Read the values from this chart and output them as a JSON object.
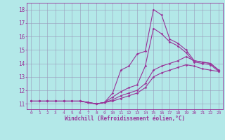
{
  "xlabel": "Windchill (Refroidissement éolien,°C)",
  "background_color": "#b3e8e8",
  "line_color": "#993399",
  "grid_color": "#9999bb",
  "xlim": [
    -0.5,
    23.5
  ],
  "ylim": [
    10.6,
    18.5
  ],
  "yticks": [
    11,
    12,
    13,
    14,
    15,
    16,
    17,
    18
  ],
  "xticks": [
    0,
    1,
    2,
    3,
    4,
    5,
    6,
    7,
    8,
    9,
    10,
    11,
    12,
    13,
    14,
    15,
    16,
    17,
    18,
    19,
    20,
    21,
    22,
    23
  ],
  "lines": [
    {
      "x": [
        0,
        1,
        2,
        3,
        4,
        5,
        6,
        7,
        8,
        9,
        10,
        11,
        12,
        13,
        14,
        15,
        16,
        17,
        18,
        19,
        20,
        21,
        22,
        23
      ],
      "y": [
        11.2,
        11.2,
        11.2,
        11.2,
        11.2,
        11.2,
        11.2,
        11.1,
        11.0,
        11.1,
        11.8,
        13.5,
        13.8,
        14.7,
        14.9,
        18.0,
        17.6,
        15.8,
        15.5,
        15.0,
        14.2,
        14.1,
        14.0,
        13.5
      ]
    },
    {
      "x": [
        0,
        1,
        2,
        3,
        4,
        5,
        6,
        7,
        8,
        9,
        10,
        11,
        12,
        13,
        14,
        15,
        16,
        17,
        18,
        19,
        20,
        21,
        22,
        23
      ],
      "y": [
        11.2,
        11.2,
        11.2,
        11.2,
        11.2,
        11.2,
        11.2,
        11.1,
        11.0,
        11.1,
        11.5,
        11.9,
        12.2,
        12.4,
        13.8,
        16.6,
        16.2,
        15.6,
        15.3,
        14.8,
        14.1,
        14.0,
        13.9,
        13.4
      ]
    },
    {
      "x": [
        0,
        1,
        2,
        3,
        4,
        5,
        6,
        7,
        8,
        9,
        10,
        11,
        12,
        13,
        14,
        15,
        16,
        17,
        18,
        19,
        20,
        21,
        22,
        23
      ],
      "y": [
        11.2,
        11.2,
        11.2,
        11.2,
        11.2,
        11.2,
        11.2,
        11.1,
        11.0,
        11.1,
        11.3,
        11.6,
        11.8,
        12.0,
        12.5,
        13.5,
        13.8,
        14.0,
        14.2,
        14.5,
        14.2,
        14.1,
        14.0,
        13.5
      ]
    },
    {
      "x": [
        0,
        1,
        2,
        3,
        4,
        5,
        6,
        7,
        8,
        9,
        10,
        11,
        12,
        13,
        14,
        15,
        16,
        17,
        18,
        19,
        20,
        21,
        22,
        23
      ],
      "y": [
        11.2,
        11.2,
        11.2,
        11.2,
        11.2,
        11.2,
        11.2,
        11.1,
        11.0,
        11.1,
        11.2,
        11.4,
        11.6,
        11.8,
        12.2,
        13.0,
        13.3,
        13.5,
        13.7,
        13.9,
        13.8,
        13.6,
        13.5,
        13.4
      ]
    }
  ]
}
